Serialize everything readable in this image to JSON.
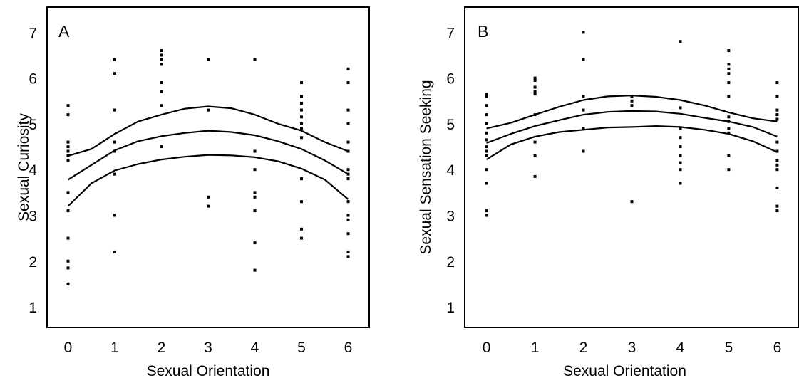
{
  "chart_data": [
    {
      "type": "scatter",
      "panel_label": "A",
      "xlabel": "Sexual Orientation",
      "ylabel": "Sexual Curiosity",
      "xlim": [
        -0.45,
        6.45
      ],
      "ylim": [
        0.55,
        7.55
      ],
      "xticks": [
        0,
        1,
        2,
        3,
        4,
        5,
        6
      ],
      "yticks": [
        1,
        2,
        3,
        4,
        5,
        6,
        7
      ],
      "x_tick_labels": [
        "0",
        "1",
        "2",
        "3",
        "4",
        "5",
        "6"
      ],
      "y_tick_labels": [
        "1",
        "2",
        "3",
        "4",
        "5",
        "6",
        "7"
      ],
      "points": [
        [
          0,
          1.5
        ],
        [
          0,
          1.85
        ],
        [
          0,
          2.0
        ],
        [
          0,
          2.5
        ],
        [
          0,
          3.1
        ],
        [
          0,
          3.5
        ],
        [
          0,
          4.2
        ],
        [
          0,
          4.3
        ],
        [
          0,
          4.4
        ],
        [
          0,
          4.5
        ],
        [
          0,
          4.6
        ],
        [
          0,
          5.2
        ],
        [
          0,
          5.4
        ],
        [
          1,
          2.2
        ],
        [
          1,
          3.0
        ],
        [
          1,
          3.9
        ],
        [
          1,
          4.4
        ],
        [
          1,
          4.6
        ],
        [
          1,
          5.3
        ],
        [
          1,
          6.1
        ],
        [
          1,
          6.4
        ],
        [
          2,
          4.5
        ],
        [
          2,
          5.4
        ],
        [
          2,
          5.7
        ],
        [
          2,
          5.9
        ],
        [
          2,
          6.3
        ],
        [
          2,
          6.4
        ],
        [
          2,
          6.5
        ],
        [
          2,
          6.6
        ],
        [
          3,
          3.2
        ],
        [
          3,
          3.4
        ],
        [
          3,
          5.3
        ],
        [
          3,
          6.4
        ],
        [
          4,
          1.8
        ],
        [
          4,
          2.4
        ],
        [
          4,
          3.1
        ],
        [
          4,
          3.4
        ],
        [
          4,
          3.5
        ],
        [
          4,
          4.0
        ],
        [
          4,
          4.4
        ],
        [
          4,
          6.4
        ],
        [
          5,
          2.5
        ],
        [
          5,
          2.7
        ],
        [
          5,
          3.3
        ],
        [
          5,
          3.8
        ],
        [
          5,
          4.7
        ],
        [
          5,
          4.9
        ],
        [
          5,
          5.0
        ],
        [
          5,
          5.15
        ],
        [
          5,
          5.3
        ],
        [
          5,
          5.45
        ],
        [
          5,
          5.6
        ],
        [
          5,
          5.9
        ],
        [
          6,
          2.1
        ],
        [
          6,
          2.2
        ],
        [
          6,
          2.6
        ],
        [
          6,
          2.9
        ],
        [
          6,
          3.0
        ],
        [
          6,
          3.3
        ],
        [
          6,
          3.8
        ],
        [
          6,
          3.9
        ],
        [
          6,
          4.0
        ],
        [
          6,
          4.4
        ],
        [
          6,
          4.6
        ],
        [
          6,
          5.0
        ],
        [
          6,
          5.3
        ],
        [
          6,
          5.9
        ],
        [
          6,
          6.2
        ]
      ],
      "series": [
        {
          "values": [
            [
              0,
              4.3
            ],
            [
              0.5,
              4.45
            ],
            [
              1,
              4.78
            ],
            [
              1.5,
              5.05
            ],
            [
              2,
              5.2
            ],
            [
              2.5,
              5.33
            ],
            [
              3,
              5.38
            ],
            [
              3.5,
              5.34
            ],
            [
              4,
              5.2
            ],
            [
              4.5,
              5.0
            ],
            [
              5,
              4.85
            ],
            [
              5.5,
              4.6
            ],
            [
              6,
              4.4
            ]
          ]
        },
        {
          "values": [
            [
              0,
              3.78
            ],
            [
              0.5,
              4.1
            ],
            [
              1,
              4.42
            ],
            [
              1.5,
              4.62
            ],
            [
              2,
              4.73
            ],
            [
              2.5,
              4.8
            ],
            [
              3,
              4.85
            ],
            [
              3.5,
              4.82
            ],
            [
              4,
              4.75
            ],
            [
              4.5,
              4.62
            ],
            [
              5,
              4.45
            ],
            [
              5.5,
              4.2
            ],
            [
              6,
              3.9
            ]
          ]
        },
        {
          "values": [
            [
              0,
              3.2
            ],
            [
              0.5,
              3.7
            ],
            [
              1,
              3.98
            ],
            [
              1.5,
              4.12
            ],
            [
              2,
              4.22
            ],
            [
              2.5,
              4.28
            ],
            [
              3,
              4.32
            ],
            [
              3.5,
              4.31
            ],
            [
              4,
              4.27
            ],
            [
              4.5,
              4.18
            ],
            [
              5,
              4.02
            ],
            [
              5.5,
              3.78
            ],
            [
              6,
              3.35
            ]
          ]
        }
      ]
    },
    {
      "type": "scatter",
      "panel_label": "B",
      "xlabel": "Sexual Orientation",
      "ylabel": "Sexual Sensation Seeking",
      "xlim": [
        -0.45,
        6.45
      ],
      "ylim": [
        0.55,
        7.55
      ],
      "xticks": [
        0,
        1,
        2,
        3,
        4,
        5,
        6
      ],
      "yticks": [
        1,
        2,
        3,
        4,
        5,
        6,
        7
      ],
      "x_tick_labels": [
        "0",
        "1",
        "2",
        "3",
        "4",
        "5",
        "6"
      ],
      "y_tick_labels": [
        "1",
        "2",
        "3",
        "4",
        "5",
        "6",
        "7"
      ],
      "points": [
        [
          0,
          3.0
        ],
        [
          0,
          3.1
        ],
        [
          0,
          3.7
        ],
        [
          0,
          4.0
        ],
        [
          0,
          4.3
        ],
        [
          0,
          4.4
        ],
        [
          0,
          4.5
        ],
        [
          0,
          4.65
        ],
        [
          0,
          4.8
        ],
        [
          0,
          5.0
        ],
        [
          0,
          5.2
        ],
        [
          0,
          5.4
        ],
        [
          0,
          5.6
        ],
        [
          0,
          5.65
        ],
        [
          1,
          3.85
        ],
        [
          1,
          4.3
        ],
        [
          1,
          4.6
        ],
        [
          1,
          5.2
        ],
        [
          1,
          5.65
        ],
        [
          1,
          5.7
        ],
        [
          1,
          5.8
        ],
        [
          1,
          5.95
        ],
        [
          1,
          6.0
        ],
        [
          2,
          4.4
        ],
        [
          2,
          4.9
        ],
        [
          2,
          5.3
        ],
        [
          2,
          5.6
        ],
        [
          2,
          6.4
        ],
        [
          2,
          7.0
        ],
        [
          3,
          3.3
        ],
        [
          3,
          5.4
        ],
        [
          3,
          5.5
        ],
        [
          3,
          5.6
        ],
        [
          4,
          3.7
        ],
        [
          4,
          4.0
        ],
        [
          4,
          4.15
        ],
        [
          4,
          4.3
        ],
        [
          4,
          4.5
        ],
        [
          4,
          4.7
        ],
        [
          4,
          4.9
        ],
        [
          4,
          5.35
        ],
        [
          4,
          6.8
        ],
        [
          5,
          4.0
        ],
        [
          5,
          4.3
        ],
        [
          5,
          4.8
        ],
        [
          5,
          4.9
        ],
        [
          5,
          5.05
        ],
        [
          5,
          5.15
        ],
        [
          5,
          5.6
        ],
        [
          5,
          5.9
        ],
        [
          5,
          6.1
        ],
        [
          5,
          6.2
        ],
        [
          5,
          6.3
        ],
        [
          5,
          6.6
        ],
        [
          6,
          3.1
        ],
        [
          6,
          3.2
        ],
        [
          6,
          3.6
        ],
        [
          6,
          4.0
        ],
        [
          6,
          4.1
        ],
        [
          6,
          4.2
        ],
        [
          6,
          4.4
        ],
        [
          6,
          4.6
        ],
        [
          6,
          5.1
        ],
        [
          6,
          5.2
        ],
        [
          6,
          5.3
        ],
        [
          6,
          5.6
        ],
        [
          6,
          5.9
        ]
      ],
      "series": [
        {
          "values": [
            [
              0,
              4.9
            ],
            [
              0.5,
              5.02
            ],
            [
              1,
              5.2
            ],
            [
              1.5,
              5.37
            ],
            [
              2,
              5.52
            ],
            [
              2.5,
              5.6
            ],
            [
              3,
              5.62
            ],
            [
              3.5,
              5.59
            ],
            [
              4,
              5.52
            ],
            [
              4.5,
              5.4
            ],
            [
              5,
              5.25
            ],
            [
              5.5,
              5.12
            ],
            [
              6,
              5.05
            ]
          ]
        },
        {
          "values": [
            [
              0,
              4.58
            ],
            [
              0.5,
              4.78
            ],
            [
              1,
              4.95
            ],
            [
              1.5,
              5.08
            ],
            [
              2,
              5.2
            ],
            [
              2.5,
              5.26
            ],
            [
              3,
              5.28
            ],
            [
              3.5,
              5.27
            ],
            [
              4,
              5.22
            ],
            [
              4.5,
              5.13
            ],
            [
              5,
              5.05
            ],
            [
              5.5,
              4.93
            ],
            [
              6,
              4.72
            ]
          ]
        },
        {
          "values": [
            [
              0,
              4.22
            ],
            [
              0.5,
              4.55
            ],
            [
              1,
              4.72
            ],
            [
              1.5,
              4.82
            ],
            [
              2,
              4.87
            ],
            [
              2.5,
              4.92
            ],
            [
              3,
              4.93
            ],
            [
              3.5,
              4.95
            ],
            [
              4,
              4.93
            ],
            [
              4.5,
              4.87
            ],
            [
              5,
              4.78
            ],
            [
              5.5,
              4.62
            ],
            [
              6,
              4.38
            ]
          ]
        }
      ]
    }
  ]
}
